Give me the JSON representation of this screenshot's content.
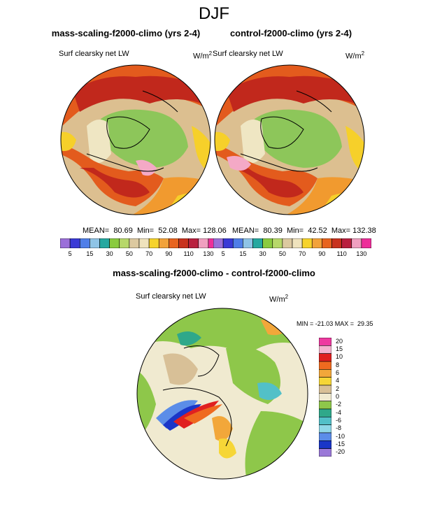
{
  "figure": {
    "title": "DJF",
    "top_left": {
      "title": "mass-scaling-f2000-climo (yrs 2-4)",
      "variable": "Surf clearsky net LW",
      "unit_base": "W/m",
      "unit_exp": "2",
      "stats": "MEAN=  80.69  Min=  52.08  Max= 128.06"
    },
    "top_right": {
      "title": "control-f2000-climo (yrs 2-4)",
      "variable": "Surf clearsky net LW",
      "unit_base": "W/m",
      "unit_exp": "2",
      "stats": "MEAN=  80.39  Min=  42.52  Max= 132.38"
    },
    "bottom": {
      "title": "mass-scaling-f2000-climo - control-f2000-climo",
      "variable": "Surf clearsky net LW",
      "unit_base": "W/m",
      "unit_exp": "2",
      "stats": "MIN = -21.03 MAX =  29.35"
    }
  },
  "colorbar_top": {
    "colors": [
      "#9b6fd9",
      "#3a3ad6",
      "#4f7ee8",
      "#8fc4e6",
      "#25a8a0",
      "#8acb3f",
      "#b7d86a",
      "#dcc9a0",
      "#efe3bd",
      "#f6d32b",
      "#f2a23a",
      "#e8641f",
      "#c8321e",
      "#b9203f",
      "#f0a0c0",
      "#ee2f9a"
    ],
    "labels": [
      "5",
      "15",
      "30",
      "50",
      "70",
      "90",
      "110",
      "130"
    ]
  },
  "colorbar_diff": {
    "colors": [
      "#ee3aa0",
      "#f5b3cf",
      "#e02020",
      "#ef6a1f",
      "#f2a73a",
      "#f6d637",
      "#d8c097",
      "#f0ead0",
      "#8ec74a",
      "#2fa88a",
      "#52c0c8",
      "#8fd8e8",
      "#5b8de8",
      "#1a36c8",
      "#9a78d8"
    ],
    "labels": [
      "20",
      "15",
      "10",
      "8",
      "6",
      "4",
      "2",
      "0",
      "-2",
      "-4",
      "-6",
      "-8",
      "-10",
      "-15",
      "-20"
    ]
  },
  "palette": {
    "land_green": "#8dc65a",
    "tan": "#dcbf90",
    "cream": "#efe6c3",
    "yellow": "#f6d02a",
    "orange": "#f19a2f",
    "red_orange": "#e35b1d",
    "dark_red": "#c1281c",
    "pink": "#f4a9c6",
    "teal": "#2aa59a",
    "blue": "#3f74df"
  }
}
